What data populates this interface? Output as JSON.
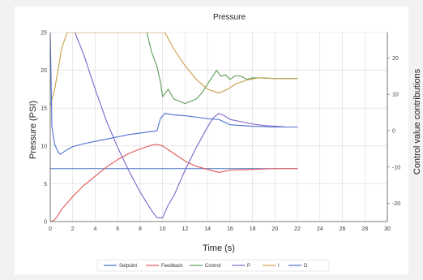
{
  "chart_data": {
    "type": "line",
    "title": "Pressure",
    "xlabel": "Time (s)",
    "ylabel": "Pressure (PSI)",
    "y2label": "Control value contributions",
    "xlim": [
      0,
      30
    ],
    "ylim": [
      0,
      25
    ],
    "y2lim": [
      -25,
      27
    ],
    "xticks": [
      "0",
      "2",
      "4",
      "6",
      "8",
      "10",
      "12",
      "14",
      "16",
      "18",
      "20",
      "22",
      "24",
      "26",
      "28",
      "30"
    ],
    "yticks": [
      "0",
      "5",
      "10",
      "15",
      "20",
      "25"
    ],
    "y2ticks": [
      "-20",
      "-10",
      "0",
      "10",
      "20"
    ],
    "grid": true,
    "legend_position": "bottom",
    "series": [
      {
        "name": "Setpoint",
        "axis": "left",
        "color": "#4472c4",
        "x": [
          0,
          22
        ],
        "y": [
          7,
          7
        ]
      },
      {
        "name": "Feedback",
        "axis": "left",
        "color": "#e15759",
        "x": [
          0,
          0.3,
          0.6,
          1,
          2,
          3,
          4,
          5,
          6,
          7,
          8,
          9,
          9.5,
          10,
          11,
          12,
          13,
          14,
          15,
          16,
          18,
          20,
          22
        ],
        "y": [
          0,
          0.1,
          0.6,
          1.6,
          3.3,
          4.8,
          6.0,
          7.2,
          8.2,
          9.0,
          9.6,
          10.1,
          10.2,
          10.0,
          9.0,
          8.0,
          7.3,
          6.9,
          6.5,
          6.8,
          6.9,
          7.0,
          7.0
        ]
      },
      {
        "name": "Control",
        "axis": "left",
        "color": "#5c9c55",
        "x": [
          8.6,
          9,
          9.5,
          9.8,
          10,
          10.5,
          11,
          12,
          13,
          13.5,
          14,
          14.5,
          14.8,
          15.2,
          15.6,
          16,
          16.5,
          17,
          17.5,
          18,
          19,
          20,
          21,
          22
        ],
        "y": [
          25,
          22.5,
          20.5,
          18.5,
          16.5,
          17.5,
          16.2,
          15.6,
          16.2,
          17,
          18.2,
          19.3,
          20.0,
          19.2,
          19.4,
          18.8,
          19.3,
          19.2,
          18.8,
          19.0,
          19.0,
          18.9,
          18.9,
          18.9
        ]
      },
      {
        "name": "P",
        "axis": "right",
        "color": "#8064c8",
        "x": [
          2.2,
          3,
          4,
          5,
          6,
          7,
          8,
          9,
          9.5,
          10,
          10.5,
          11,
          12,
          13,
          14,
          14.5,
          15,
          15.5,
          16,
          17,
          18,
          19,
          20,
          21,
          22
        ],
        "y": [
          27,
          22.5,
          17.2,
          12,
          7,
          2.1,
          -3,
          -8,
          -12,
          -20.5,
          -24.3,
          -24.3,
          -18,
          -10.2,
          -3,
          1,
          5,
          8.5,
          9.2,
          5.2,
          3.2,
          1.3,
          0.4,
          0.1,
          0
        ],
        "y_left": [
          25,
          22,
          17.5,
          13.3,
          9.8,
          6.7,
          3.9,
          1.5,
          0.5,
          0.5,
          2.2,
          3.4,
          6.8,
          9.8,
          12.5,
          13.7,
          14.3,
          14.0,
          13.5,
          13.2,
          12.9,
          12.7,
          12.6,
          12.5,
          12.5
        ]
      },
      {
        "name": "I",
        "axis": "left",
        "color": "#c9a048",
        "x": [
          0,
          0.4,
          0.8,
          1,
          1.5,
          10.2,
          11,
          12,
          13,
          14,
          15,
          15.8,
          16.5,
          17.5,
          18.5,
          20,
          22
        ],
        "y": [
          15.3,
          17.5,
          21,
          22.8,
          25,
          25,
          22.8,
          20.6,
          18.8,
          17.5,
          17.0,
          17.5,
          18.2,
          18.7,
          19.0,
          18.9,
          18.9
        ]
      },
      {
        "name": "D",
        "axis": "left",
        "color": "#4a6fd0",
        "x": [
          0,
          0.15,
          0.4,
          0.7,
          0.9,
          1.5,
          2,
          3,
          4,
          5,
          6,
          7,
          8,
          9,
          9.5,
          9.8,
          10.2,
          11,
          12,
          13,
          14,
          15,
          16,
          18,
          20,
          22
        ],
        "y": [
          25,
          12.5,
          10.2,
          9.2,
          8.9,
          9.5,
          9.9,
          10.3,
          10.6,
          10.9,
          11.2,
          11.5,
          11.7,
          11.9,
          12.0,
          13.6,
          14.3,
          14.1,
          14.0,
          13.8,
          13.6,
          13.5,
          12.8,
          12.6,
          12.5,
          12.5
        ]
      }
    ]
  }
}
